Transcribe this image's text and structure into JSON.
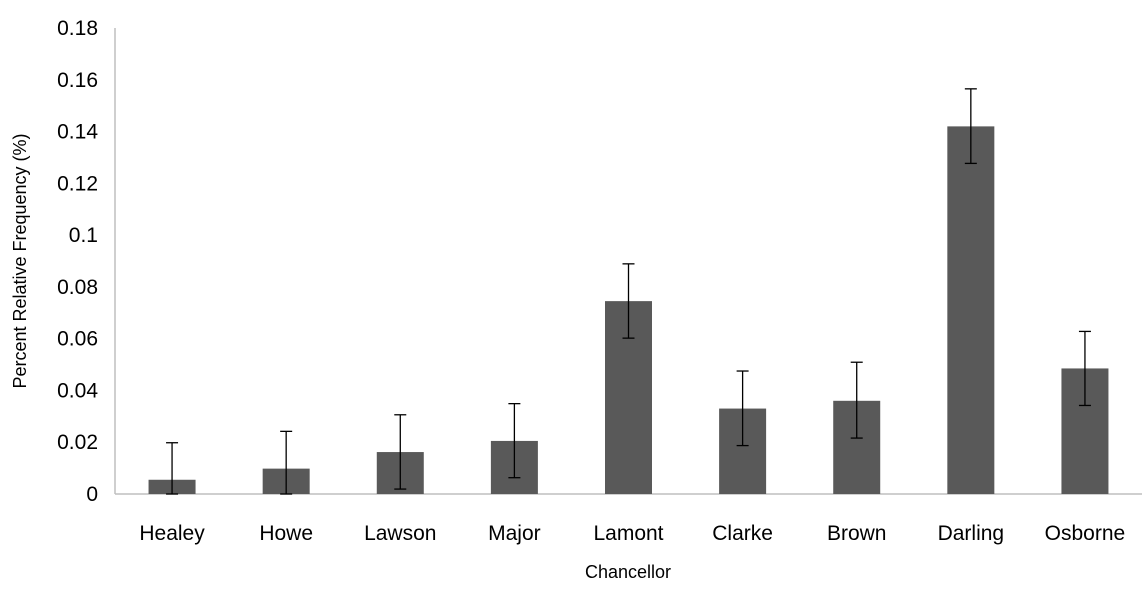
{
  "chart_data": {
    "type": "bar",
    "title": "",
    "xlabel": "Chancellor",
    "ylabel": "Percent Relative Frequency (%)",
    "ylim": [
      0,
      0.18
    ],
    "yticks": [
      "0",
      "0.02",
      "0.04",
      "0.06",
      "0.08",
      "0.1",
      "0.12",
      "0.14",
      "0.16",
      "0.18"
    ],
    "ytick_values": [
      0,
      0.02,
      0.04,
      0.06,
      0.08,
      0.1,
      0.12,
      0.14,
      0.16,
      0.18
    ],
    "categories": [
      "Healey",
      "Howe",
      "Lawson",
      "Major",
      "Lamont",
      "Clarke",
      "Brown",
      "Darling",
      "Osborne"
    ],
    "values": [
      0.0055,
      0.0098,
      0.0162,
      0.0205,
      0.0745,
      0.033,
      0.036,
      0.142,
      0.0485
    ],
    "error_upper": [
      0.0198,
      0.0242,
      0.0306,
      0.0349,
      0.0889,
      0.0475,
      0.0509,
      0.1565,
      0.0628
    ],
    "error_lower": [
      0.0,
      0.0,
      0.0019,
      0.0063,
      0.0602,
      0.0187,
      0.0216,
      0.1277,
      0.0342
    ],
    "grid": false,
    "legend": "none",
    "colors": {
      "bar": "#595959",
      "axis": "#bfbfbf",
      "error": "#000000"
    }
  }
}
